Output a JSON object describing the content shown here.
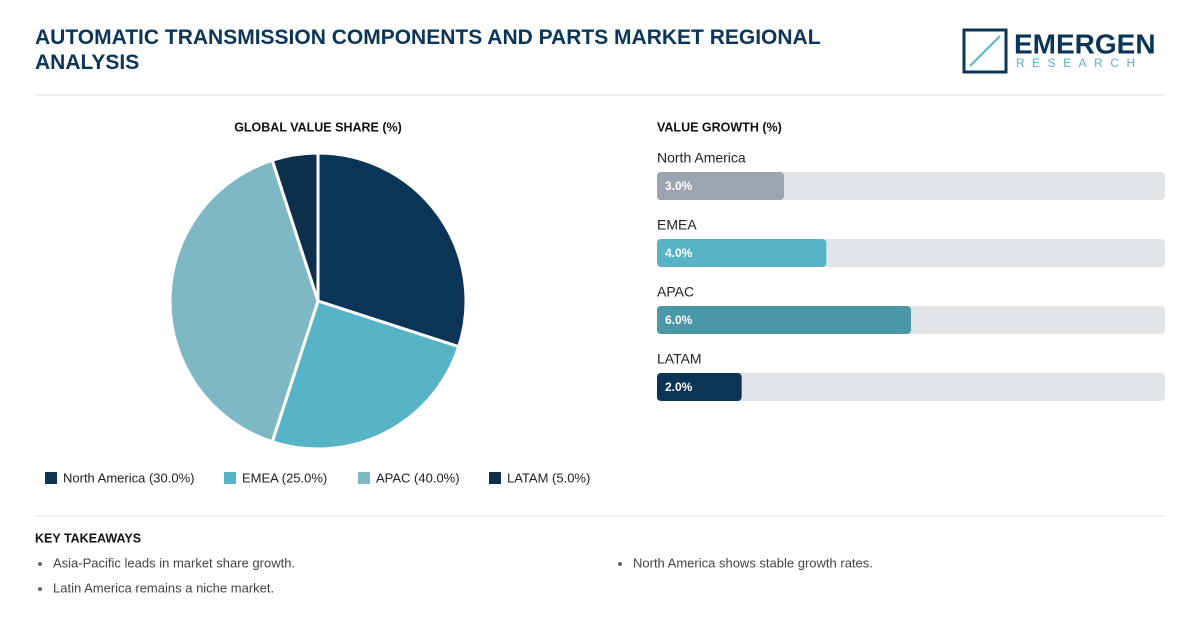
{
  "header": {
    "title": "AUTOMATIC TRANSMISSION COMPONENTS AND PARTS MARKET REGIONAL ANALYSIS",
    "logo": {
      "name": "EMERGEN",
      "tagline": "RESEARCH"
    }
  },
  "chart_data": [
    {
      "type": "pie",
      "title": "GLOBAL VALUE SHARE (%)",
      "categories": [
        "North America",
        "EMEA",
        "APAC",
        "LATAM"
      ],
      "values": [
        30,
        25,
        40,
        5
      ],
      "value_labels": [
        "North America (30.0%)",
        "EMEA (25.0%)",
        "APAC (40.0%)",
        "LATAM (5.0%)"
      ],
      "colors": [
        "#0b3556",
        "#57b3c6",
        "#7fb8c5",
        "#0d2f4a"
      ]
    },
    {
      "type": "hbar",
      "title": "VALUE GROWTH (%)",
      "categories": [
        "North America",
        "EMEA",
        "APAC",
        "LATAM"
      ],
      "values": [
        3,
        4,
        6,
        2
      ],
      "value_labels": [
        "3.0%",
        "4.0%",
        "6.0%",
        "2.0%"
      ],
      "colors": [
        "#9ca5af",
        "#57b3c6",
        "#4b97a8",
        "#0b3556"
      ],
      "xlim": [
        0,
        12
      ]
    }
  ],
  "key_takeaways": {
    "title": "KEY TAKEAWAYS",
    "items": [
      "Asia-Pacific leads in market share growth.",
      "North America shows stable growth rates.",
      "Latin America remains a niche market."
    ]
  }
}
